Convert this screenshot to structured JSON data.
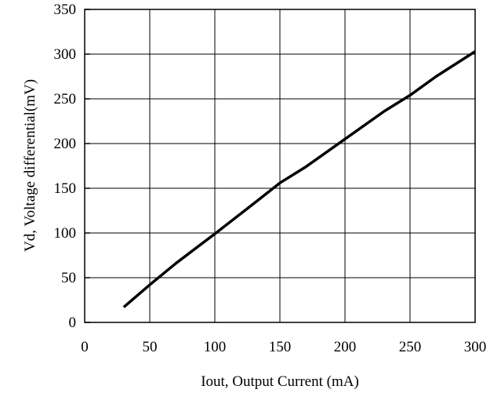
{
  "chart_data": {
    "type": "line",
    "title": "",
    "xlabel": "Iout, Output Current (mA)",
    "ylabel": "Vd, Voltage differential(mV)",
    "xlim": [
      0,
      300
    ],
    "ylim": [
      0,
      350
    ],
    "xticks": [
      0,
      50,
      100,
      150,
      200,
      250,
      300
    ],
    "xtick_labels": [
      "0",
      "50",
      "100",
      "150",
      "200",
      "250",
      "300"
    ],
    "yticks": [
      0,
      50,
      100,
      150,
      200,
      250,
      300,
      350
    ],
    "ytick_labels": [
      "0",
      "50",
      "100",
      "150",
      "200",
      "250",
      "300",
      "350"
    ],
    "grid": true,
    "line_color": "#000000",
    "series": [
      {
        "x": [
          30,
          50,
          70,
          100,
          130,
          150,
          170,
          200,
          230,
          250,
          270,
          300
        ],
        "y": [
          17,
          42,
          66,
          99,
          133,
          156,
          174,
          205,
          236,
          254,
          275,
          303
        ]
      }
    ]
  }
}
